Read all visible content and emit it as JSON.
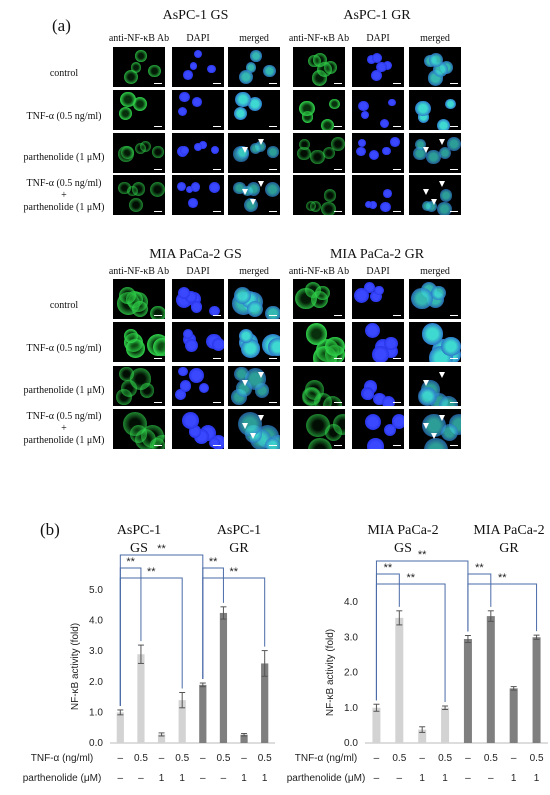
{
  "panel_a": {
    "label": "(a)",
    "column_headers": [
      "anti-NF-κB Ab",
      "DAPI",
      "merged"
    ],
    "groups": [
      {
        "title": "AsPC-1 GS"
      },
      {
        "title": "AsPC-1 GR"
      },
      {
        "title": "MIA PaCa-2 GS"
      },
      {
        "title": "MIA PaCa-2 GR"
      }
    ],
    "row_labels": [
      "control",
      "TNF-α (0.5 ng/ml)",
      "parthenolide (1 μM)",
      "TNF-α (0.5 ng/ml)",
      "+",
      "parthenolide (1 μM)"
    ],
    "colors": {
      "green": "#2fd24a",
      "blue": "#2430e0",
      "cyan": "#3ed9d0",
      "background": "#000000"
    }
  },
  "panel_b": {
    "label": "(b)",
    "treatment_labels": {
      "tnf": "TNF-α (ng/ml)",
      "parthenolide": "parthenolide (μM)"
    },
    "tnf_values": [
      "–",
      "0.5",
      "–",
      "0.5",
      "–",
      "0.5",
      "–",
      "0.5"
    ],
    "parthenolide_values": [
      "–",
      "–",
      "1",
      "1",
      "–",
      "–",
      "1",
      "1"
    ],
    "significance": "**",
    "colors": {
      "gs_bar": "#d3d3d3",
      "gr_bar": "#7f7f7f",
      "bracket": "#4a6ba8"
    }
  },
  "chart_data": [
    {
      "type": "bar",
      "group_titles": [
        "AsPC-1 GS",
        "AsPC-1 GR"
      ],
      "ylabel": "NF-κB activity (fold)",
      "ylim": [
        0,
        5
      ],
      "yticks": [
        "0.0",
        "1.0",
        "2.0",
        "3.0",
        "4.0",
        "5.0"
      ],
      "values": [
        1.0,
        2.9,
        0.28,
        1.4,
        1.9,
        4.25,
        0.27,
        2.6
      ],
      "errors": [
        0.08,
        0.3,
        0.05,
        0.25,
        0.06,
        0.2,
        0.04,
        0.42
      ],
      "bar_group": [
        "GS",
        "GS",
        "GS",
        "GS",
        "GR",
        "GR",
        "GR",
        "GR"
      ]
    },
    {
      "type": "bar",
      "group_titles": [
        "MIA PaCa-2 GS",
        "MIA PaCa-2 GR"
      ],
      "ylabel": "NF-κB activity (fold)",
      "ylim": [
        0,
        4
      ],
      "yticks": [
        "0.0",
        "1.0",
        "2.0",
        "3.0",
        "4.0"
      ],
      "values": [
        1.0,
        3.55,
        0.38,
        1.0,
        2.95,
        3.6,
        1.55,
        3.0
      ],
      "errors": [
        0.1,
        0.2,
        0.08,
        0.05,
        0.1,
        0.15,
        0.05,
        0.06
      ],
      "bar_group": [
        "GS",
        "GS",
        "GS",
        "GS",
        "GR",
        "GR",
        "GR",
        "GR"
      ]
    }
  ]
}
